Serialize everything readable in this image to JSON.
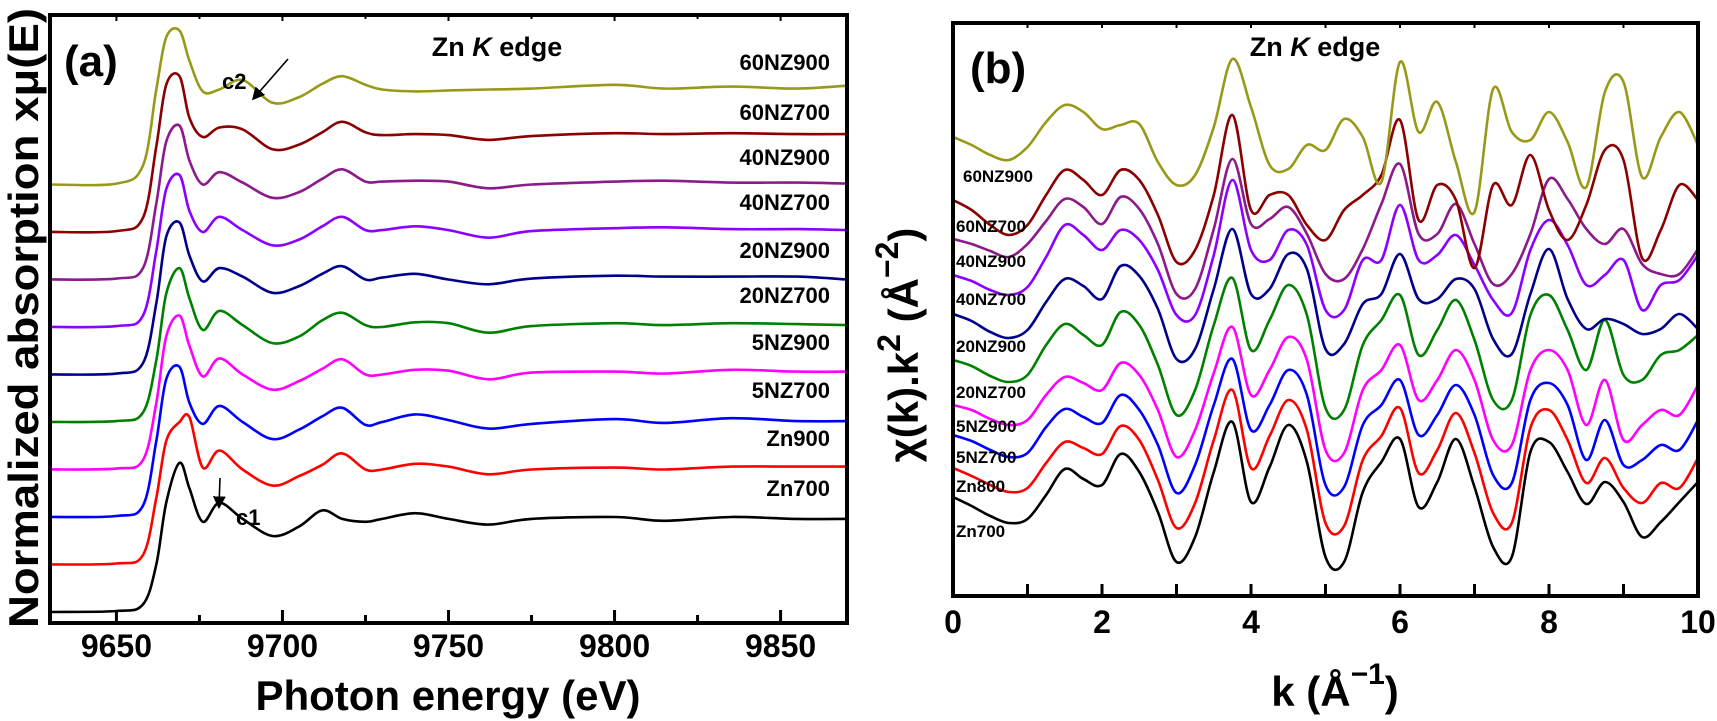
{
  "chart_data": [
    {
      "type": "line",
      "panel_label": "(a)",
      "title_parts": [
        "Zn ",
        "K",
        " edge"
      ],
      "xlabel": "Photon energy (eV)",
      "ylabel": "Normalized absorption xμ(E)",
      "xlim": [
        9630,
        9870
      ],
      "xticks": [
        9650,
        9700,
        9750,
        9800,
        9850
      ],
      "y_tick_labels": false,
      "stacked": true,
      "grid": false,
      "legend": "inline labels at right end of each curve",
      "annotations": [
        {
          "text": "c1",
          "x": 9681
        },
        {
          "text": "c2",
          "x": 9690
        }
      ],
      "x": [
        9630,
        9650,
        9658,
        9662,
        9665,
        9669,
        9672,
        9676,
        9681,
        9688,
        9697,
        9705,
        9712,
        9718,
        9725,
        9730,
        9740,
        9750,
        9762,
        9775,
        9800,
        9815,
        9835,
        9855,
        9870
      ],
      "series": [
        {
          "name": "Zn700",
          "color": "#000000",
          "values": [
            0,
            0.01,
            0.08,
            0.5,
            1.15,
            1.57,
            1.3,
            0.95,
            1.15,
            0.98,
            0.8,
            0.9,
            1.07,
            0.98,
            0.95,
            0.98,
            1.04,
            0.98,
            0.92,
            0.98,
            1.0,
            0.96,
            1.0,
            0.98,
            0.98
          ]
        },
        {
          "name": "Zn900",
          "color": "#ff0000",
          "values": [
            0,
            0.01,
            0.1,
            0.7,
            1.3,
            1.5,
            1.55,
            1.02,
            1.2,
            1.0,
            0.83,
            0.93,
            1.05,
            1.17,
            1.0,
            1.0,
            1.06,
            1.03,
            0.95,
            1.0,
            1.02,
            1.0,
            1.03,
            1.03,
            1.03
          ]
        },
        {
          "name": "5NZ700",
          "color": "#0000ff",
          "values": [
            0,
            0.01,
            0.12,
            0.8,
            1.45,
            1.58,
            1.2,
            0.98,
            1.17,
            1.0,
            0.82,
            0.92,
            1.06,
            1.15,
            0.97,
            1.0,
            1.08,
            1.02,
            0.93,
            0.98,
            1.03,
            0.99,
            1.04,
            1.01,
            1.01
          ]
        },
        {
          "name": "5NZ900",
          "color": "#ff00ff",
          "values": [
            0,
            0.01,
            0.1,
            0.7,
            1.4,
            1.62,
            1.3,
            0.98,
            1.17,
            1.0,
            0.84,
            0.93,
            1.06,
            1.16,
            1.0,
            1.0,
            1.05,
            1.04,
            0.95,
            1.02,
            1.03,
            1.01,
            1.05,
            1.03,
            1.03
          ]
        },
        {
          "name": "20NZ700",
          "color": "#008000",
          "values": [
            0,
            0.01,
            0.1,
            0.65,
            1.35,
            1.62,
            1.3,
            0.97,
            1.17,
            1.02,
            0.83,
            0.9,
            1.07,
            1.15,
            1.02,
            1.0,
            1.05,
            1.04,
            0.94,
            1.01,
            1.04,
            1.02,
            1.04,
            1.03,
            1.02
          ]
        },
        {
          "name": "20NZ900",
          "color": "#00008b",
          "values": [
            0,
            0.01,
            0.12,
            0.75,
            1.45,
            1.6,
            1.25,
            0.98,
            1.12,
            1.03,
            0.86,
            0.93,
            1.06,
            1.14,
            1.0,
            1.02,
            1.06,
            1.0,
            0.95,
            1.01,
            1.04,
            1.03,
            1.03,
            1.03,
            1.0
          ]
        },
        {
          "name": "40NZ700",
          "color": "#8b00ff",
          "values": [
            0,
            0.01,
            0.12,
            0.8,
            1.45,
            1.6,
            1.22,
            1.0,
            1.16,
            1.02,
            0.86,
            0.92,
            1.06,
            1.16,
            1.02,
            1.02,
            1.06,
            1.02,
            0.94,
            1.01,
            1.04,
            1.05,
            1.03,
            1.03,
            1.02
          ]
        },
        {
          "name": "40NZ900",
          "color": "#8b1a8b",
          "values": [
            0,
            0.01,
            0.12,
            0.8,
            1.45,
            1.62,
            1.25,
            1.0,
            1.13,
            1.02,
            0.86,
            0.92,
            1.06,
            1.16,
            1.03,
            1.03,
            1.04,
            1.03,
            0.96,
            1.0,
            1.03,
            1.04,
            1.02,
            1.02,
            1.01
          ]
        },
        {
          "name": "60NZ700",
          "color": "#8b0000",
          "values": [
            0,
            0.01,
            0.15,
            0.9,
            1.55,
            1.64,
            1.2,
            1.0,
            1.1,
            1.08,
            0.87,
            0.92,
            1.05,
            1.16,
            1.05,
            1.02,
            1.03,
            1.02,
            0.97,
            1.01,
            1.04,
            1.03,
            1.04,
            1.03,
            1.03
          ]
        },
        {
          "name": "60NZ900",
          "color": "#999919",
          "values": [
            0,
            0.01,
            0.2,
            1.0,
            1.55,
            1.62,
            1.3,
            0.98,
            1.0,
            1.1,
            0.86,
            0.92,
            1.06,
            1.14,
            1.05,
            1.0,
            0.98,
            0.99,
            1.0,
            1.01,
            1.05,
            1.01,
            1.03,
            1.01,
            1.04
          ]
        }
      ]
    },
    {
      "type": "line",
      "panel_label": "(b)",
      "title_parts": [
        "Zn ",
        "K",
        " edge"
      ],
      "xlabel_parts": [
        "k (Å",
        "−1",
        ")"
      ],
      "ylabel_parts": [
        "χ(k).k",
        "2",
        " (Å",
        "−2",
        ")"
      ],
      "xlim": [
        0,
        10
      ],
      "xticks": [
        0,
        2,
        4,
        6,
        8,
        10
      ],
      "y_tick_labels": false,
      "stacked": true,
      "grid": false,
      "legend": "inline labels at left start of each curve",
      "x": [
        0,
        0.25,
        0.5,
        0.75,
        1,
        1.25,
        1.5,
        1.75,
        2,
        2.25,
        2.5,
        2.75,
        3,
        3.25,
        3.5,
        3.75,
        4,
        4.25,
        4.5,
        4.75,
        5,
        5.25,
        5.5,
        5.75,
        6,
        6.25,
        6.5,
        6.75,
        7,
        7.25,
        7.5,
        7.75,
        8,
        8.25,
        8.5,
        8.75,
        9,
        9.25,
        9.5,
        9.75,
        10
      ],
      "series": [
        {
          "name": "Zn700",
          "color": "#000000",
          "values": [
            0,
            -0.9,
            -1.9,
            -2.6,
            -2.2,
            0.2,
            2.8,
            1.8,
            1.2,
            4.3,
            2.5,
            -1.5,
            -6.5,
            -4.0,
            2.5,
            7.5,
            -0.5,
            3.0,
            7.2,
            3.5,
            -6.0,
            -6.5,
            0.5,
            3.5,
            5.8,
            -1.0,
            1.5,
            5.8,
            1.0,
            -5.0,
            -6.0,
            4.5,
            5.5,
            2.5,
            -0.7,
            1.5,
            -0.5,
            -4.0,
            -2.5,
            -0.5,
            1.5
          ]
        },
        {
          "name": "Zn800",
          "color": "#ff0000",
          "values": [
            0,
            -0.8,
            -1.7,
            -2.4,
            -2.0,
            0.5,
            2.6,
            2.0,
            1.4,
            4.2,
            2.8,
            -1.2,
            -6.0,
            -3.5,
            2.8,
            7.8,
            0.0,
            3.2,
            6.8,
            3.8,
            -5.5,
            -5.8,
            0.8,
            3.2,
            6.0,
            -0.5,
            1.8,
            5.5,
            1.5,
            -4.5,
            -5.5,
            4.0,
            5.8,
            2.8,
            -1.5,
            1.0,
            -2.0,
            -3.5,
            -1.5,
            -2.0,
            1.0
          ]
        },
        {
          "name": "5NZ700",
          "color": "#0000ff",
          "values": [
            0,
            -0.6,
            -1.5,
            -2.2,
            -1.8,
            0.8,
            2.6,
            1.8,
            1.2,
            4.0,
            2.5,
            -1.0,
            -5.8,
            -3.0,
            3.0,
            7.6,
            0.5,
            3.0,
            6.5,
            4.0,
            -5.0,
            -5.2,
            1.0,
            3.0,
            5.5,
            0.0,
            2.0,
            5.0,
            2.0,
            -4.0,
            -4.8,
            3.5,
            5.2,
            3.0,
            -2.5,
            1.5,
            -3.0,
            -2.5,
            -1.0,
            -1.5,
            1.5
          ]
        },
        {
          "name": "5NZ900",
          "color": "#ff00ff",
          "values": [
            0,
            -0.5,
            -1.4,
            -2.0,
            -1.5,
            1.0,
            2.8,
            2.2,
            1.5,
            4.2,
            3.0,
            -0.5,
            -5.2,
            -2.5,
            3.2,
            7.8,
            1.0,
            3.5,
            6.8,
            4.5,
            -4.5,
            -4.8,
            1.5,
            3.5,
            6.0,
            0.5,
            2.5,
            5.5,
            2.5,
            -3.5,
            -4.0,
            3.5,
            5.5,
            3.5,
            -2.0,
            2.5,
            -3.5,
            -2.0,
            -0.5,
            -1.0,
            2.0
          ]
        },
        {
          "name": "20NZ700",
          "color": "#008000",
          "values": [
            0,
            -0.6,
            -1.6,
            -2.2,
            -1.5,
            1.5,
            3.6,
            2.5,
            1.5,
            4.8,
            3.5,
            -0.5,
            -5.5,
            -3.0,
            3.5,
            8.2,
            1.0,
            4.0,
            7.5,
            4.5,
            -4.8,
            -5.0,
            1.5,
            4.0,
            6.5,
            0.5,
            3.0,
            6.0,
            2.0,
            -4.0,
            -4.0,
            4.5,
            6.5,
            3.0,
            -1.0,
            4.0,
            -1.5,
            -2.0,
            0.5,
            1.0,
            2.5
          ]
        },
        {
          "name": "20NZ900",
          "color": "#00008b",
          "values": [
            0,
            -0.7,
            -1.8,
            -2.4,
            -1.6,
            1.2,
            3.5,
            2.8,
            1.5,
            4.8,
            3.8,
            0.5,
            -4.5,
            -3.5,
            2.5,
            8.5,
            2.0,
            2.5,
            6.0,
            4.5,
            -3.5,
            -3.0,
            1.0,
            2.0,
            6.0,
            1.5,
            1.5,
            3.5,
            2.5,
            -2.5,
            -4.0,
            2.0,
            6.5,
            1.5,
            -1.5,
            -0.5,
            -1.0,
            -2.0,
            -1.5,
            0.0,
            -1.5
          ]
        },
        {
          "name": "40NZ700",
          "color": "#8b00ff",
          "values": [
            0,
            -0.6,
            -1.5,
            -2.0,
            -1.2,
            1.8,
            5.0,
            4.0,
            2.5,
            4.5,
            3.5,
            0.5,
            -4.0,
            -4.0,
            2.0,
            9.5,
            2.5,
            1.5,
            4.5,
            3.0,
            -3.5,
            -3.5,
            1.5,
            1.5,
            7.0,
            1.5,
            2.0,
            4.0,
            1.0,
            -2.5,
            -3.8,
            2.5,
            5.5,
            3.0,
            -1.0,
            0.0,
            1.5,
            -3.5,
            -1.0,
            -0.5,
            2.0
          ]
        },
        {
          "name": "40NZ900",
          "color": "#8b1a8b",
          "values": [
            0,
            -0.5,
            -1.2,
            -1.8,
            -0.5,
            1.8,
            4.0,
            3.2,
            1.5,
            4.2,
            3.0,
            -0.5,
            -5.5,
            -5.0,
            1.0,
            8.0,
            1.5,
            2.0,
            3.2,
            0.5,
            -3.5,
            -4.0,
            -1.0,
            3.5,
            7.5,
            0.5,
            0.5,
            3.5,
            -0.5,
            -4.5,
            -3.5,
            0.5,
            6.0,
            4.0,
            1.0,
            -0.5,
            1.0,
            -2.5,
            -3.5,
            -3.5,
            -1.0
          ]
        },
        {
          "name": "60NZ700",
          "color": "#8b0000",
          "values": [
            0,
            -1.0,
            -2.5,
            -3.5,
            -2.5,
            0.5,
            3.0,
            2.0,
            0.5,
            3.0,
            2.0,
            -1.5,
            -6.2,
            -5.0,
            0.5,
            8.5,
            -1.0,
            0.5,
            0.5,
            -2.5,
            -4.0,
            -1.0,
            0.5,
            2.5,
            8.0,
            -2.0,
            1.5,
            0.0,
            -6.8,
            1.5,
            -0.5,
            4.5,
            -1.0,
            -4.0,
            -0.5,
            5.0,
            4.0,
            -5.8,
            -3.0,
            1.5,
            0.0
          ]
        },
        {
          "name": "60NZ900",
          "color": "#999919",
          "values": [
            0,
            -0.8,
            -1.8,
            -2.3,
            -1.0,
            1.5,
            3.2,
            2.5,
            0.8,
            1.2,
            1.3,
            -2.5,
            -4.8,
            -3.8,
            1.0,
            7.8,
            3.0,
            -2.8,
            -3.2,
            -0.8,
            -1.3,
            1.8,
            0.0,
            -4.5,
            7.5,
            0.5,
            3.5,
            -2.5,
            -7.5,
            4.8,
            0.5,
            -0.3,
            2.5,
            -0.5,
            -5.0,
            4.5,
            5.5,
            -4.0,
            0.0,
            2.5,
            -0.8
          ]
        }
      ]
    }
  ]
}
